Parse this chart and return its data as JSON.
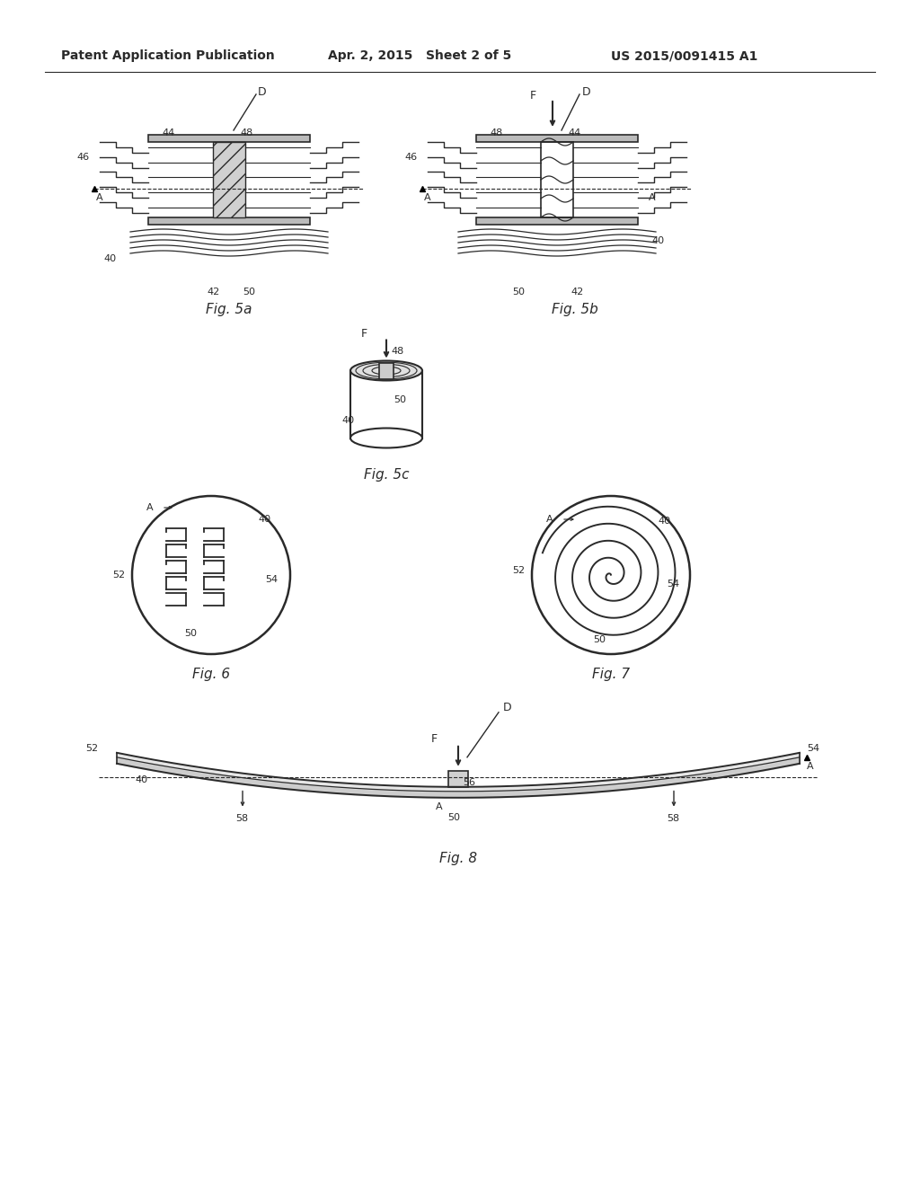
{
  "bg_color": "#ffffff",
  "header_left": "Patent Application Publication",
  "header_mid": "Apr. 2, 2015   Sheet 2 of 5",
  "header_right": "US 2015/0091415 A1",
  "fig_labels": {
    "fig5a": "Fig. 5a",
    "fig5b": "Fig. 5b",
    "fig5c": "Fig. 5c",
    "fig6": "Fig. 6",
    "fig7": "Fig. 7",
    "fig8": "Fig. 8"
  },
  "line_color": "#2a2a2a",
  "gray_fill": "#d0d0d0",
  "dark_fill": "#888888"
}
